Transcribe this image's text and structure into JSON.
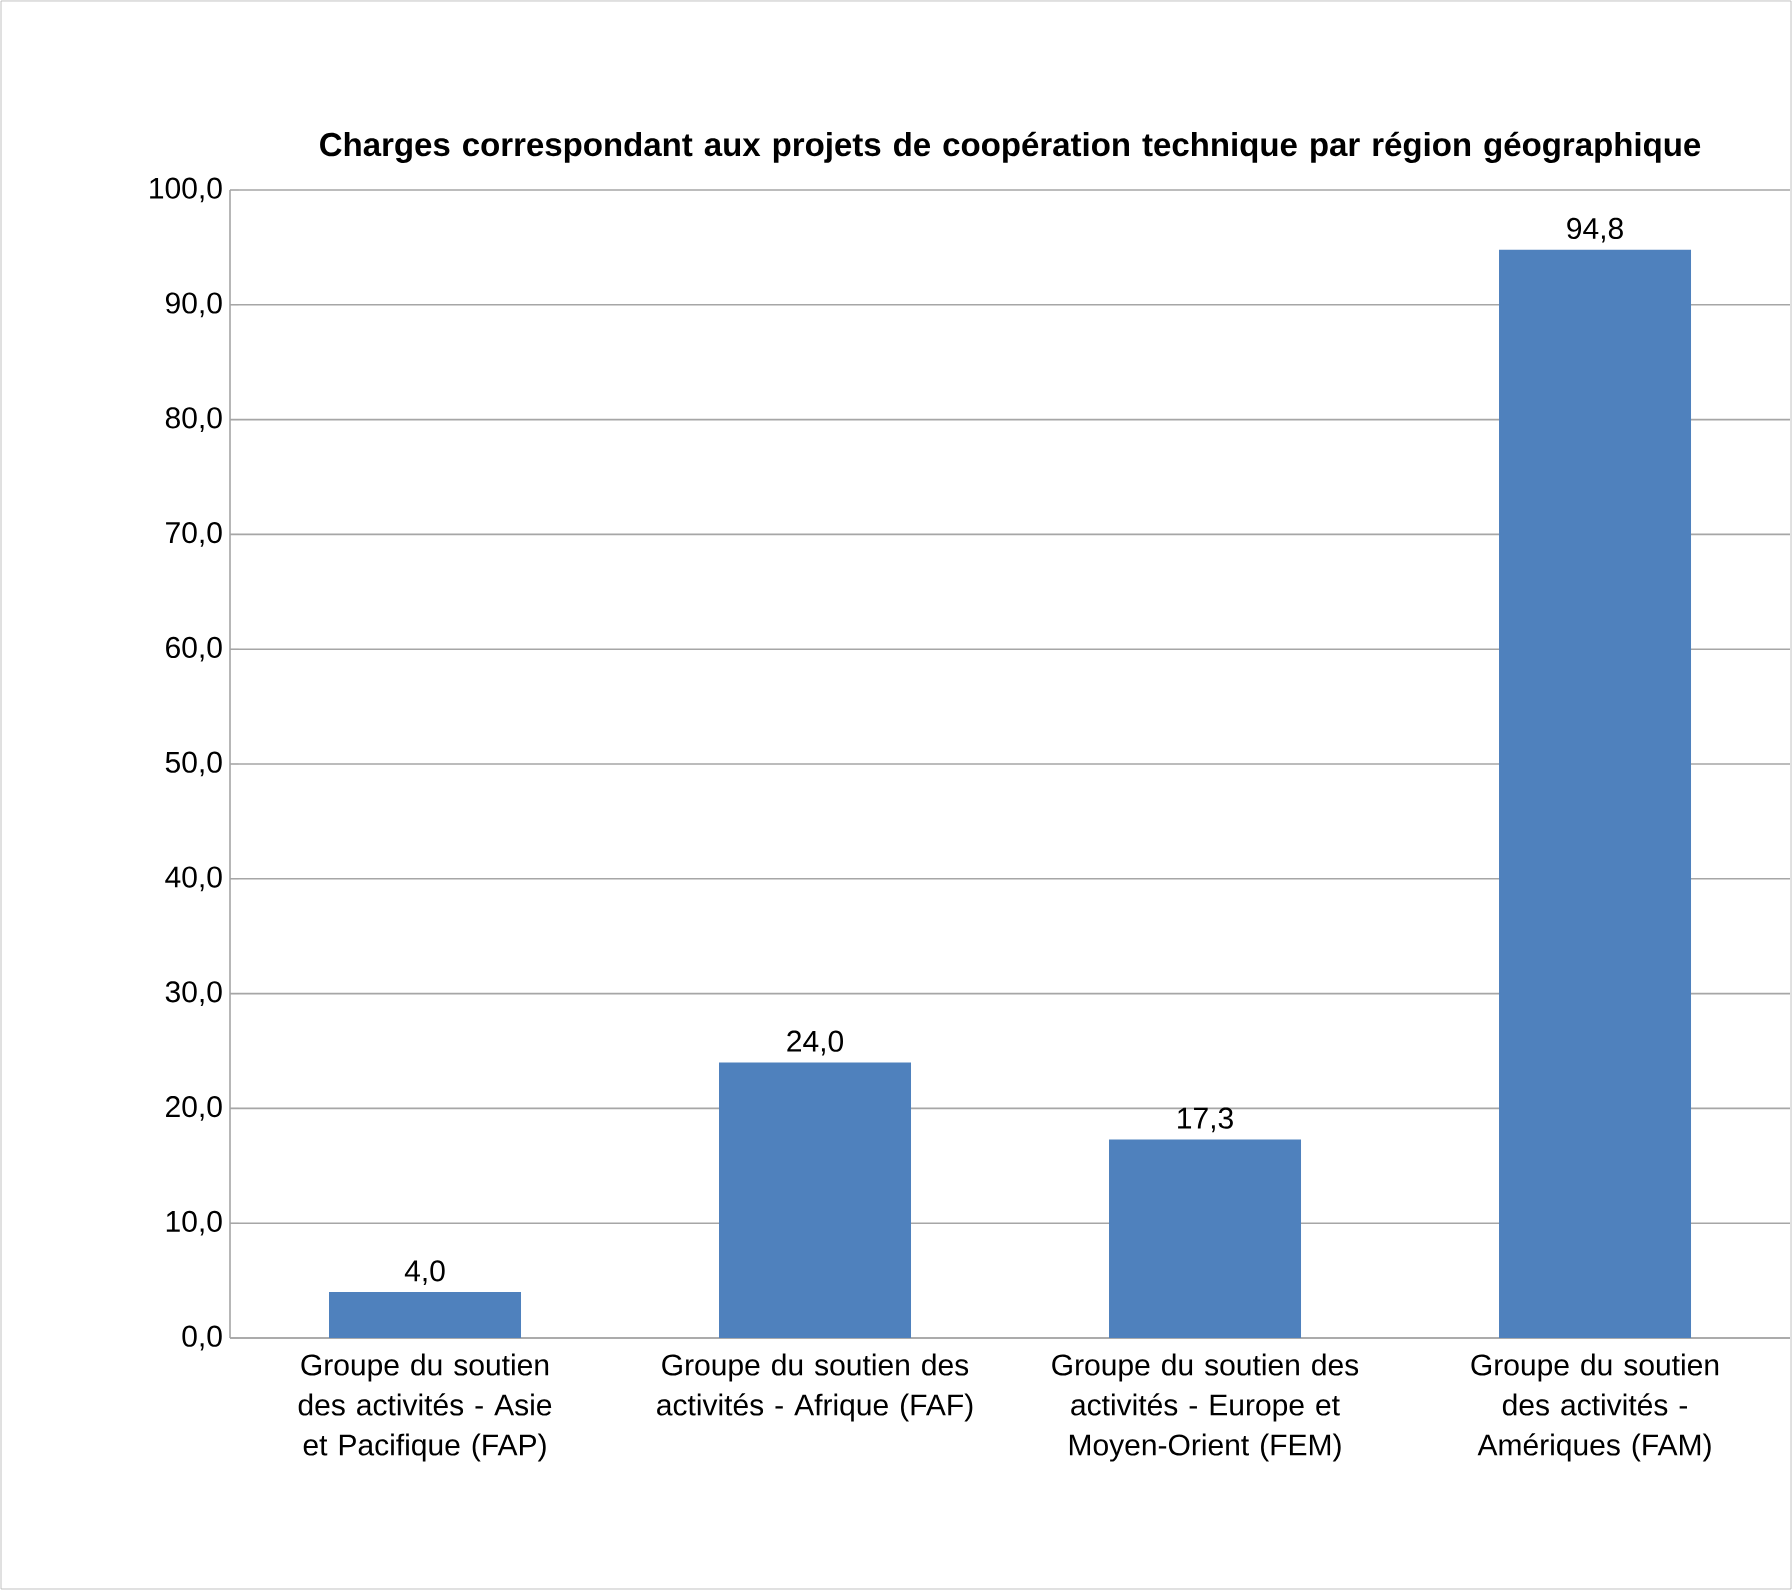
{
  "chart_data": {
    "type": "bar",
    "title": "Charges correspondant aux projets de  coopération technique par région géographique",
    "categories": [
      "Groupe du soutien des activités - Asie et Pacifique (FAP)",
      "Groupe du soutien des activités - Afrique (FAF)",
      "Groupe du soutien des activités - Europe et Moyen-Orient (FEM)",
      "Groupe du soutien des activités - Amériques (FAM)"
    ],
    "values": [
      4.0,
      24.0,
      17.3,
      94.8
    ],
    "value_labels": [
      "4,0",
      "24,0",
      "17,3",
      "94,8"
    ],
    "color": "#4f81bd",
    "ylim": [
      0,
      100
    ],
    "yticks": [
      {
        "value": 0,
        "label": "0,0"
      },
      {
        "value": 10,
        "label": "10,0"
      },
      {
        "value": 20,
        "label": "20,0"
      },
      {
        "value": 30,
        "label": "30,0"
      },
      {
        "value": 40,
        "label": "40,0"
      },
      {
        "value": 50,
        "label": "50,0"
      },
      {
        "value": 60,
        "label": "60,0"
      },
      {
        "value": 70,
        "label": "70,0"
      },
      {
        "value": 80,
        "label": "80,0"
      },
      {
        "value": 90,
        "label": "90,0"
      },
      {
        "value": 100,
        "label": "100,0"
      }
    ],
    "grid": "y"
  }
}
